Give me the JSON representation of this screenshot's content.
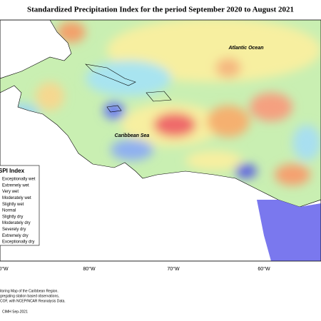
{
  "title": "Standardized Precipitation Index for the period September 2020 to August 2021",
  "labels": {
    "ocean": "Atlantic Ocean",
    "sea": "Caribbean Sea"
  },
  "legend": {
    "title": "SPI Index",
    "items": [
      "Exceptionally wet",
      "Extremely wet",
      "Very wet",
      "Moderately wet",
      "Slightly wet",
      "Normal",
      "Slightly dry",
      "Moderately dry",
      "Severely dry",
      "Extremely dry",
      "Exceptionally dry"
    ]
  },
  "longitudes": [
    "0°W",
    "80°W",
    "70°W",
    "60°W"
  ],
  "footer": {
    "lines": [
      "itoring Map of the Caribbean Region.",
      "gregating station based observations,",
      "COF, with NCEP/NCAR Reanalysis Data."
    ],
    "credit": "CIMH Sep-2021"
  }
}
